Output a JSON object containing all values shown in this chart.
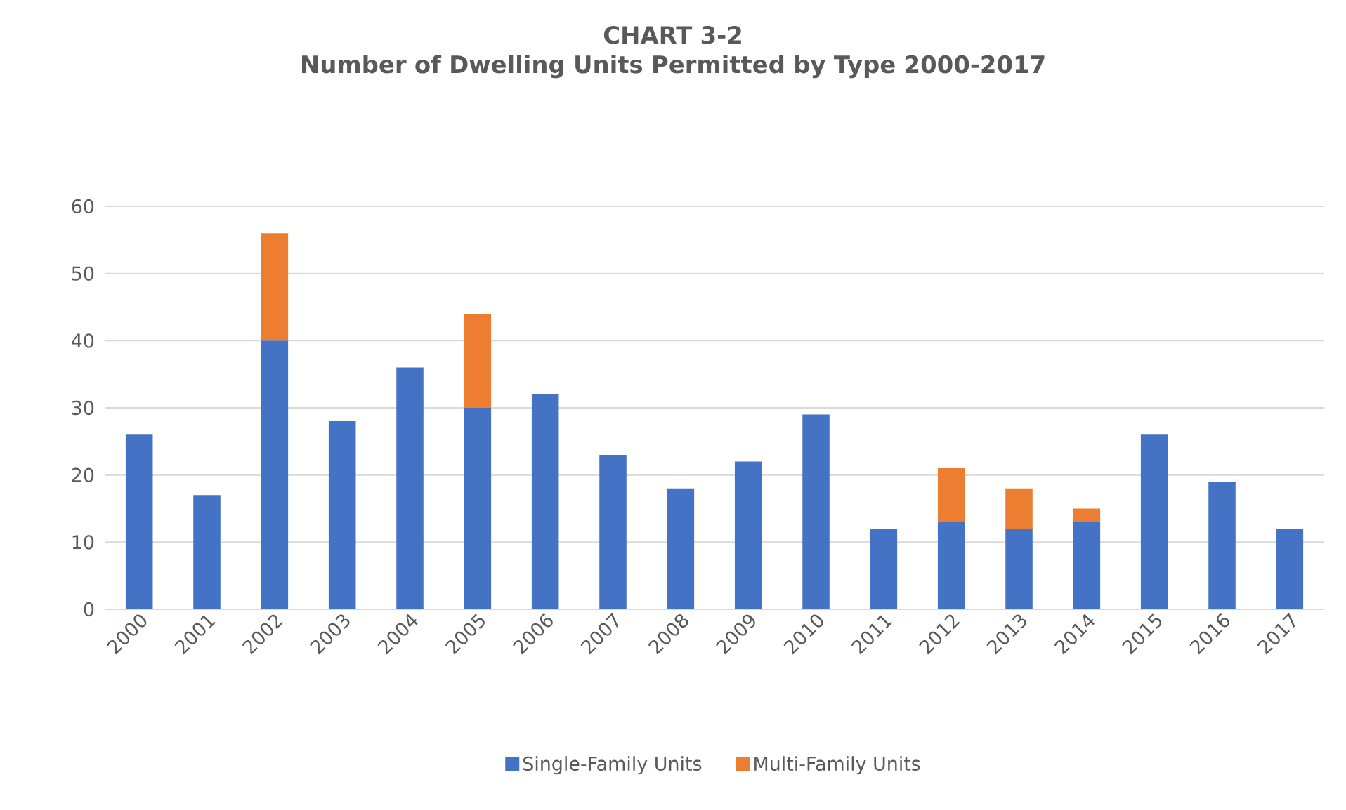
{
  "chart_data": {
    "type": "bar",
    "stacked": true,
    "title": "CHART 3-2",
    "subtitle": "Number of Dwelling Units Permitted by Type 2000-2017",
    "categories": [
      "2000",
      "2001",
      "2002",
      "2003",
      "2004",
      "2005",
      "2006",
      "2007",
      "2008",
      "2009",
      "2010",
      "2011",
      "2012",
      "2013",
      "2014",
      "2015",
      "2016",
      "2017"
    ],
    "series": [
      {
        "name": "Single-Family Units",
        "color": "#4472c4",
        "values": [
          26,
          17,
          40,
          28,
          36,
          30,
          32,
          23,
          18,
          22,
          29,
          12,
          13,
          12,
          13,
          26,
          19,
          12
        ]
      },
      {
        "name": "Multi-Family Units",
        "color": "#ed7d31",
        "values": [
          null,
          null,
          16,
          null,
          null,
          14,
          null,
          null,
          null,
          null,
          null,
          null,
          8,
          6,
          2,
          null,
          null,
          null
        ]
      }
    ],
    "ylim": [
      0,
      60
    ],
    "yticks": [
      0,
      10,
      20,
      30,
      40,
      50,
      60
    ],
    "grid": "y",
    "legend": "bottom"
  }
}
